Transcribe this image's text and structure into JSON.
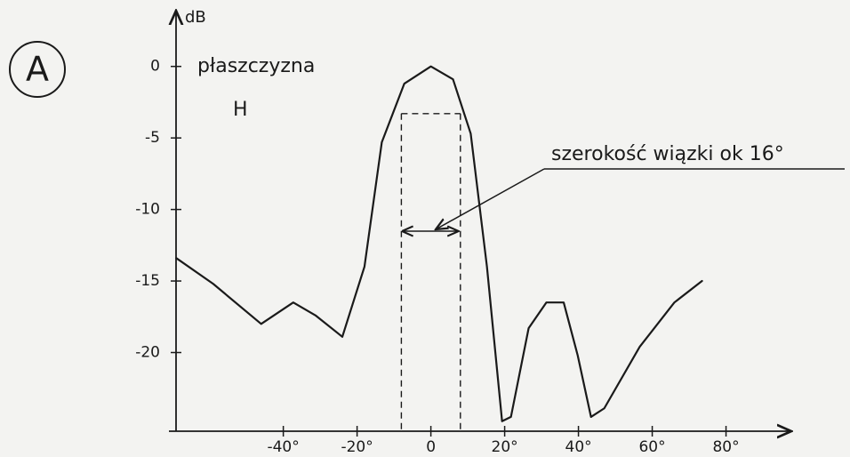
{
  "chart_data": {
    "type": "line",
    "panel_label": "A",
    "y_label": "dB",
    "annotations": [
      "płaszczyzna",
      "H",
      "szerokość wiązki ok 16°"
    ],
    "x": [
      -69,
      -59,
      -46,
      -37.3,
      -31.3,
      -24,
      -18,
      -13.3,
      -7.2,
      0,
      6,
      10.8,
      15.2,
      19.3,
      21.7,
      26.5,
      31.3,
      36,
      39.8,
      43.4,
      47,
      56.6,
      66,
      73.5
    ],
    "series": [
      {
        "color": "#1a1a1a",
        "values": [
          -13.4,
          -15.2,
          -18,
          -16.5,
          -17.4,
          -18.9,
          -14,
          -5.3,
          -1.2,
          0,
          -0.9,
          -4.7,
          -14,
          -24.8,
          -24.5,
          -18.3,
          -16.5,
          -16.5,
          -20.2,
          -24.5,
          -23.9,
          -19.6,
          -16.5,
          -15
        ]
      }
    ],
    "beam_edges": [
      -8,
      8
    ],
    "beam_level": -3.3,
    "xlim": [
      -71,
      97.7
    ],
    "ylim": [
      -25.5,
      3.4
    ],
    "xticks": [
      {
        "value": -40,
        "label": "-40°"
      },
      {
        "value": -20,
        "label": "-20°"
      },
      0,
      {
        "value": 20,
        "label": "20°"
      },
      {
        "value": 40,
        "label": "40°"
      },
      {
        "value": 60,
        "label": "60°"
      },
      {
        "value": 80,
        "label": "80°"
      }
    ],
    "yticks": [
      0,
      -5,
      -10,
      -15,
      -20
    ]
  }
}
